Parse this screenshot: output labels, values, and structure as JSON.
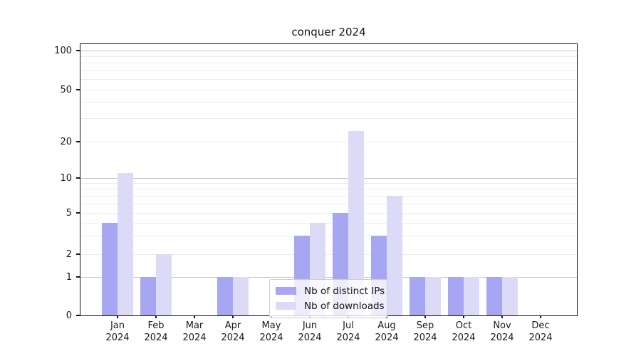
{
  "title": "conquer 2024",
  "chart_data": {
    "type": "bar",
    "title": "conquer 2024",
    "categories": [
      "Jan",
      "Feb",
      "Mar",
      "Apr",
      "May",
      "Jun",
      "Jul",
      "Aug",
      "Sep",
      "Oct",
      "Nov",
      "Dec"
    ],
    "x_tick_year": "2024",
    "series": [
      {
        "name": "Nb of distinct IPs",
        "color": "#a6a6f2",
        "values": [
          4,
          1,
          0,
          1,
          0,
          3,
          5,
          3,
          1,
          1,
          1,
          0
        ]
      },
      {
        "name": "Nb of downloads",
        "color": "#dbdbf8",
        "values": [
          11,
          2,
          0,
          1,
          0,
          4,
          24,
          7,
          1,
          1,
          1,
          0
        ]
      }
    ],
    "xlabel": "",
    "ylabel": "",
    "y_ticks": [
      0,
      1,
      2,
      5,
      10,
      20,
      50,
      100
    ],
    "ylim": [
      0,
      113
    ],
    "y_scale": "symlog",
    "grid": {
      "orientation": "horizontal",
      "major_lines": [
        1,
        10,
        100
      ],
      "minor_lines": [
        2,
        3,
        4,
        5,
        6,
        7,
        8,
        9,
        20,
        30,
        40,
        50,
        60,
        70,
        80,
        90
      ]
    },
    "legend": {
      "position": "lower center",
      "entries": [
        "Nb of distinct IPs",
        "Nb of downloads"
      ]
    }
  },
  "colors": {
    "background": "#ffffff",
    "axis": "#151515",
    "text": "#1a1a1a",
    "grid_major": "#c3c3c3",
    "grid_minor": "#ececec",
    "legend_border": "#cccccc",
    "series_ips": "#a6a6f2",
    "series_downloads": "#dbdbf8"
  }
}
